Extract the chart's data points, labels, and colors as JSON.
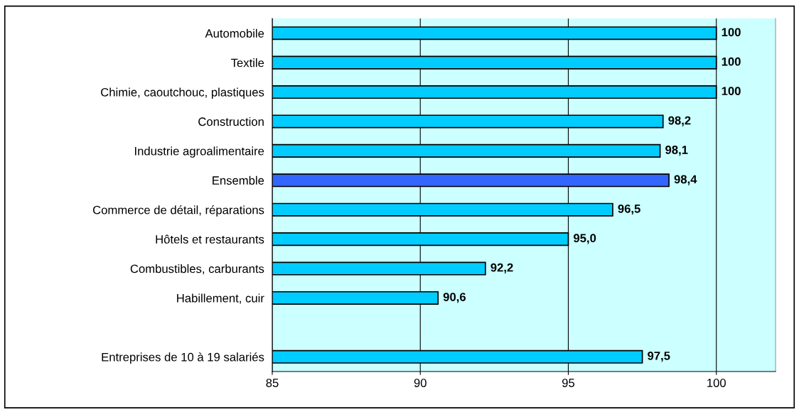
{
  "chart_data": {
    "type": "bar",
    "orientation": "horizontal",
    "categories": [
      "Automobile",
      "Textile",
      "Chimie, caoutchouc, plastiques",
      "Construction",
      "Industrie agroalimentaire",
      "Ensemble",
      "Commerce de détail, réparations",
      "Hôtels et restaurants",
      "Combustibles, carburants",
      "Habillement, cuir",
      null,
      "Entreprises de 10 à 19 salariés"
    ],
    "values": [
      100,
      100,
      100,
      98.2,
      98.1,
      98.4,
      96.5,
      95.0,
      92.2,
      90.6,
      null,
      97.5
    ],
    "value_labels": [
      "100",
      "100",
      "100",
      "98,2",
      "98,1",
      "98,4",
      "96,5",
      "95,0",
      "92,2",
      "90,6",
      null,
      "97,5"
    ],
    "colors": [
      "#00ccff",
      "#00ccff",
      "#00ccff",
      "#00ccff",
      "#00ccff",
      "#3366ff",
      "#00ccff",
      "#00ccff",
      "#00ccff",
      "#00ccff",
      "#00ccff",
      "#00ccff"
    ],
    "xlim": [
      85,
      102
    ],
    "xticks": [
      85,
      90,
      95,
      100
    ],
    "grid": "x"
  }
}
